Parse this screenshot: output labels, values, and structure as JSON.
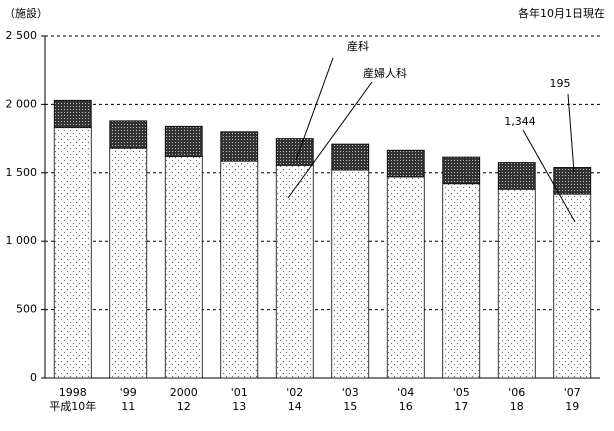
{
  "chart_data": {
    "type": "stacked-bar",
    "unit_label": "（施設）",
    "note": "各年10月1日現在",
    "categories": [
      [
        "1998",
        "平成10年"
      ],
      [
        "'99",
        "11"
      ],
      [
        "2000",
        "12"
      ],
      [
        "'01",
        "13"
      ],
      [
        "'02",
        "14"
      ],
      [
        "'03",
        "15"
      ],
      [
        "'04",
        "16"
      ],
      [
        "'05",
        "17"
      ],
      [
        "'06",
        "18"
      ],
      [
        "'07",
        "19"
      ]
    ],
    "series": [
      {
        "name": "産婦人科",
        "color": "#ffffff",
        "values": [
          1830,
          1680,
          1620,
          1585,
          1555,
          1520,
          1470,
          1420,
          1380,
          1344
        ],
        "value_labels": [
          null,
          null,
          null,
          null,
          null,
          null,
          null,
          null,
          null,
          "1,344"
        ]
      },
      {
        "name": "産科",
        "color": "#333333",
        "values": [
          200,
          200,
          220,
          215,
          195,
          190,
          195,
          195,
          195,
          195
        ],
        "value_labels": [
          null,
          null,
          null,
          null,
          null,
          null,
          null,
          null,
          null,
          "195"
        ]
      }
    ],
    "ylim": [
      0,
      2500
    ],
    "yticks": [
      0,
      500,
      {
        "value": 1000,
        "label": "1 000"
      },
      {
        "value": 1500,
        "label": "1 500"
      },
      {
        "value": 2000,
        "label": "2 000"
      },
      {
        "value": 2500,
        "label": "2 500"
      }
    ],
    "grid": true
  }
}
